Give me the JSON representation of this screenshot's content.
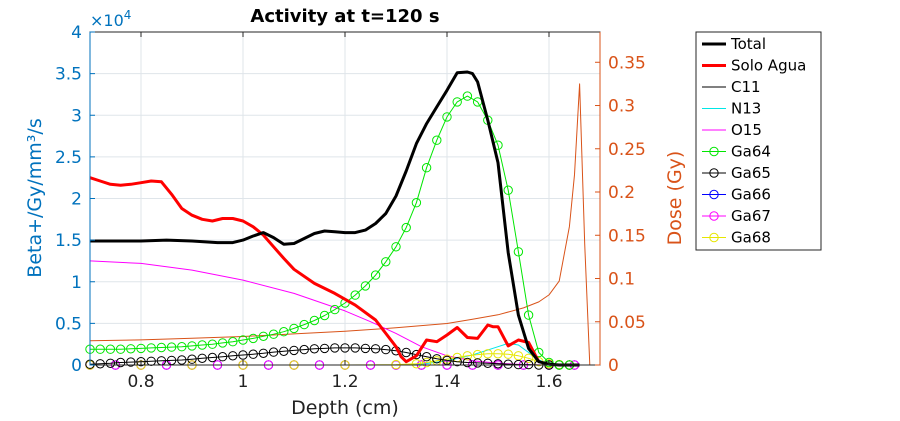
{
  "chart_data": {
    "type": "line",
    "title": "Activity at t=120 s",
    "xlabel": "Depth (cm)",
    "ylabel_left": "Beta+/Gy/mm³/s",
    "ylabel_right": "Dose (Gy)",
    "left_exponent_prefix": "×10",
    "left_exponent_power": "4",
    "xlim": [
      0.7,
      1.7
    ],
    "ylim_left": [
      0,
      40000
    ],
    "ylim_right": [
      0,
      0.385
    ],
    "x_ticks": [
      0.8,
      1.0,
      1.2,
      1.4,
      1.6
    ],
    "x_tick_labels": [
      "0.8",
      "1",
      "1.2",
      "1.4",
      "1.6"
    ],
    "y_left_ticks": [
      0,
      5000,
      10000,
      15000,
      20000,
      25000,
      30000,
      35000,
      40000
    ],
    "y_left_tick_labels": [
      "0",
      "0.5",
      "1",
      "1.5",
      "2",
      "2.5",
      "3",
      "3.5",
      "4"
    ],
    "y_right_ticks": [
      0,
      0.05,
      0.1,
      0.15,
      0.2,
      0.25,
      0.3,
      0.35
    ],
    "y_right_tick_labels": [
      "0",
      "0.05",
      "0.1",
      "0.15",
      "0.2",
      "0.25",
      "0.3",
      "0.35"
    ],
    "grid": true,
    "legend_position": "outside-top-right",
    "series": [
      {
        "name": "Total",
        "axis": "left",
        "color": "#000000",
        "marker": "none",
        "width": 3,
        "x": [
          0.7,
          0.75,
          0.8,
          0.85,
          0.9,
          0.95,
          0.98,
          1.0,
          1.02,
          1.04,
          1.06,
          1.08,
          1.1,
          1.12,
          1.14,
          1.16,
          1.18,
          1.2,
          1.22,
          1.24,
          1.26,
          1.28,
          1.3,
          1.32,
          1.34,
          1.36,
          1.38,
          1.4,
          1.42,
          1.44,
          1.45,
          1.46,
          1.48,
          1.5,
          1.52,
          1.54,
          1.56,
          1.58,
          1.6,
          1.62,
          1.64,
          1.66
        ],
        "y": [
          14900,
          14900,
          14900,
          15000,
          14900,
          14700,
          14700,
          15000,
          15500,
          15900,
          15300,
          14500,
          14600,
          15200,
          15800,
          16100,
          16000,
          15900,
          15900,
          16200,
          17000,
          18200,
          20300,
          23300,
          26600,
          29000,
          31000,
          33000,
          35100,
          35200,
          35000,
          34000,
          29400,
          24300,
          13500,
          6000,
          2000,
          400,
          100,
          0,
          0,
          0
        ]
      },
      {
        "name": "Solo Agua",
        "axis": "left",
        "color": "#ff0000",
        "marker": "none",
        "width": 3,
        "x": [
          0.7,
          0.72,
          0.74,
          0.76,
          0.78,
          0.8,
          0.82,
          0.84,
          0.86,
          0.88,
          0.9,
          0.92,
          0.94,
          0.96,
          0.98,
          1.0,
          1.02,
          1.04,
          1.06,
          1.08,
          1.1,
          1.14,
          1.18,
          1.22,
          1.26,
          1.28,
          1.3,
          1.31,
          1.32,
          1.34,
          1.36,
          1.38,
          1.4,
          1.42,
          1.44,
          1.46,
          1.48,
          1.49,
          1.5,
          1.52,
          1.54,
          1.56,
          1.58
        ],
        "y": [
          22500,
          22100,
          21700,
          21600,
          21700,
          21900,
          22100,
          22000,
          20500,
          18800,
          18000,
          17500,
          17300,
          17600,
          17600,
          17300,
          16600,
          15600,
          14200,
          12800,
          11500,
          9800,
          8600,
          7200,
          5400,
          3800,
          2200,
          1000,
          400,
          1100,
          3000,
          2800,
          3600,
          4500,
          3300,
          3200,
          4800,
          4600,
          4600,
          2300,
          3000,
          2700,
          400
        ]
      },
      {
        "name": "C11",
        "axis": "left",
        "color": "#000000",
        "marker": "none",
        "width": 1,
        "x": [
          0.7,
          0.8,
          0.9,
          1.0,
          1.1,
          1.2,
          1.3,
          1.4,
          1.5,
          1.55,
          1.6,
          1.65
        ],
        "y": [
          0,
          0,
          0,
          0,
          0,
          0,
          0,
          0,
          0,
          0,
          0,
          0
        ]
      },
      {
        "name": "N13",
        "axis": "left",
        "color": "#00e6e6",
        "marker": "none",
        "width": 1,
        "x": [
          0.7,
          1.3,
          1.35,
          1.4,
          1.45,
          1.5,
          1.52,
          1.54,
          1.56,
          1.58,
          1.6,
          1.65
        ],
        "y": [
          0,
          0,
          100,
          500,
          1200,
          2200,
          2600,
          2400,
          1500,
          600,
          100,
          0
        ]
      },
      {
        "name": "O15",
        "axis": "left",
        "color": "#ff00ff",
        "marker": "none",
        "width": 1,
        "x": [
          0.7,
          0.8,
          0.9,
          1.0,
          1.1,
          1.2,
          1.25,
          1.3,
          1.35,
          1.4,
          1.45,
          1.5,
          1.55,
          1.6
        ],
        "y": [
          12500,
          12200,
          11400,
          10200,
          8600,
          6500,
          5200,
          3800,
          2200,
          1100,
          500,
          200,
          50,
          0
        ]
      },
      {
        "name": "Ga64",
        "axis": "left",
        "color": "#00e600",
        "marker": "circle",
        "width": 1,
        "x": [
          0.7,
          0.72,
          0.74,
          0.76,
          0.78,
          0.8,
          0.82,
          0.84,
          0.86,
          0.88,
          0.9,
          0.92,
          0.94,
          0.96,
          0.98,
          1.0,
          1.02,
          1.04,
          1.06,
          1.08,
          1.1,
          1.12,
          1.14,
          1.16,
          1.18,
          1.2,
          1.22,
          1.24,
          1.26,
          1.28,
          1.3,
          1.32,
          1.34,
          1.36,
          1.38,
          1.4,
          1.42,
          1.44,
          1.46,
          1.48,
          1.5,
          1.52,
          1.54,
          1.56,
          1.58,
          1.6,
          1.62,
          1.64
        ],
        "y": [
          1900,
          1900,
          1900,
          1900,
          1950,
          2000,
          2050,
          2100,
          2150,
          2200,
          2300,
          2400,
          2500,
          2650,
          2800,
          3000,
          3200,
          3450,
          3700,
          4000,
          4400,
          4850,
          5350,
          5950,
          6650,
          7450,
          8400,
          9500,
          10800,
          12400,
          14200,
          16500,
          19500,
          23700,
          27000,
          29800,
          31600,
          32300,
          31600,
          29400,
          26400,
          21000,
          13600,
          6000,
          1500,
          300,
          0,
          0
        ]
      },
      {
        "name": "Ga65",
        "axis": "left",
        "color": "#000000",
        "marker": "circle",
        "width": 1,
        "x": [
          0.7,
          0.72,
          0.74,
          0.76,
          0.78,
          0.8,
          0.82,
          0.84,
          0.86,
          0.88,
          0.9,
          0.92,
          0.94,
          0.96,
          0.98,
          1.0,
          1.02,
          1.04,
          1.06,
          1.08,
          1.1,
          1.12,
          1.14,
          1.16,
          1.18,
          1.2,
          1.22,
          1.24,
          1.26,
          1.28,
          1.3,
          1.32,
          1.34,
          1.36,
          1.38,
          1.4,
          1.42,
          1.44,
          1.46,
          1.48,
          1.5,
          1.52,
          1.54,
          1.56,
          1.58,
          1.6,
          1.62,
          1.64
        ],
        "y": [
          100,
          150,
          200,
          300,
          350,
          400,
          450,
          500,
          550,
          600,
          700,
          800,
          900,
          1000,
          1100,
          1200,
          1300,
          1400,
          1550,
          1650,
          1750,
          1850,
          1950,
          2000,
          2050,
          2050,
          2050,
          2000,
          1950,
          1850,
          1700,
          1500,
          1250,
          1000,
          750,
          550,
          400,
          300,
          250,
          200,
          150,
          100,
          50,
          50,
          0,
          0,
          0,
          0
        ]
      },
      {
        "name": "Ga66",
        "axis": "left",
        "color": "#0000ff",
        "marker": "circle",
        "width": 1,
        "x": [
          0.7,
          0.75,
          0.8,
          0.85,
          0.9,
          0.95,
          1.0,
          1.05,
          1.1,
          1.15,
          1.2,
          1.25,
          1.3,
          1.35,
          1.4,
          1.45,
          1.5,
          1.55,
          1.6,
          1.65
        ],
        "y": [
          0,
          0,
          0,
          0,
          0,
          0,
          0,
          0,
          0,
          0,
          0,
          0,
          0,
          0,
          0,
          0,
          0,
          0,
          0,
          0
        ]
      },
      {
        "name": "Ga67",
        "axis": "left",
        "color": "#ff00ff",
        "marker": "circle",
        "width": 1,
        "x": [
          0.7,
          0.75,
          0.8,
          0.85,
          0.9,
          0.95,
          1.0,
          1.05,
          1.1,
          1.15,
          1.2,
          1.25,
          1.3,
          1.35,
          1.4,
          1.45,
          1.5,
          1.55,
          1.6,
          1.65
        ],
        "y": [
          0,
          0,
          0,
          0,
          0,
          0,
          0,
          0,
          0,
          0,
          0,
          0,
          0,
          0,
          0,
          0,
          0,
          0,
          0,
          0
        ]
      },
      {
        "name": "Ga68",
        "axis": "left",
        "color": "#e6e600",
        "marker": "circle",
        "width": 1,
        "x": [
          0.7,
          0.8,
          0.9,
          1.0,
          1.1,
          1.2,
          1.3,
          1.34,
          1.36,
          1.38,
          1.4,
          1.42,
          1.44,
          1.46,
          1.48,
          1.5,
          1.52,
          1.54,
          1.56,
          1.58,
          1.6,
          1.62,
          1.64
        ],
        "y": [
          0,
          0,
          0,
          0,
          0,
          0,
          50,
          150,
          300,
          500,
          700,
          900,
          1100,
          1250,
          1350,
          1350,
          1300,
          1100,
          800,
          400,
          150,
          50,
          0
        ]
      },
      {
        "name": "",
        "axis": "right",
        "color": "#d95319",
        "marker": "none",
        "width": 1,
        "x": [
          0.7,
          0.8,
          0.9,
          1.0,
          1.1,
          1.2,
          1.3,
          1.4,
          1.45,
          1.5,
          1.55,
          1.58,
          1.6,
          1.62,
          1.64,
          1.65,
          1.66,
          1.67,
          1.68,
          1.7
        ],
        "y": [
          0.028,
          0.029,
          0.031,
          0.033,
          0.036,
          0.039,
          0.043,
          0.048,
          0.053,
          0.058,
          0.066,
          0.073,
          0.081,
          0.097,
          0.16,
          0.22,
          0.325,
          0.14,
          0,
          0
        ]
      }
    ]
  }
}
